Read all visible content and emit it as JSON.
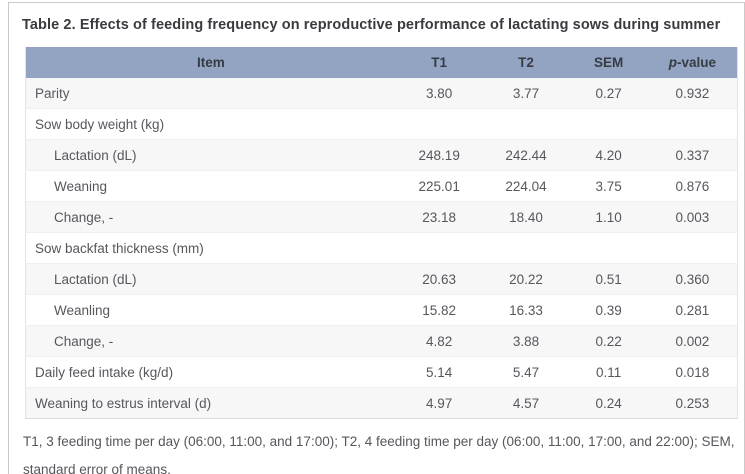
{
  "title": "Table 2. Effects of feeding frequency on reproductive performance of lactating sows during summer",
  "table": {
    "header": {
      "item": "Item",
      "t1": "T1",
      "t2": "T2",
      "sem": "SEM",
      "p_italic": "p",
      "p_rest": "-value"
    },
    "rows": [
      {
        "label": "Parity",
        "indent": false,
        "t1": "3.80",
        "t2": "3.77",
        "sem": "0.27",
        "p": "0.932"
      },
      {
        "label": "Sow body weight (kg)",
        "indent": false,
        "t1": "",
        "t2": "",
        "sem": "",
        "p": ""
      },
      {
        "label": "Lactation (dL)",
        "indent": true,
        "t1": "248.19",
        "t2": "242.44",
        "sem": "4.20",
        "p": "0.337"
      },
      {
        "label": "Weaning",
        "indent": true,
        "t1": "225.01",
        "t2": "224.04",
        "sem": "3.75",
        "p": "0.876"
      },
      {
        "label": "Change, -",
        "indent": true,
        "t1": "23.18",
        "t2": "18.40",
        "sem": "1.10",
        "p": "0.003"
      },
      {
        "label": "Sow backfat thickness (mm)",
        "indent": false,
        "t1": "",
        "t2": "",
        "sem": "",
        "p": ""
      },
      {
        "label": "Lactation (dL)",
        "indent": true,
        "t1": "20.63",
        "t2": "20.22",
        "sem": "0.51",
        "p": "0.360"
      },
      {
        "label": "Weanling",
        "indent": true,
        "t1": "15.82",
        "t2": "16.33",
        "sem": "0.39",
        "p": "0.281"
      },
      {
        "label": "Change, -",
        "indent": true,
        "t1": "4.82",
        "t2": "3.88",
        "sem": "0.22",
        "p": "0.002"
      },
      {
        "label": "Daily feed intake (kg/d)",
        "indent": false,
        "t1": "5.14",
        "t2": "5.47",
        "sem": "0.11",
        "p": "0.018"
      },
      {
        "label": "Weaning to estrus interval (d)",
        "indent": false,
        "t1": "4.97",
        "t2": "4.57",
        "sem": "0.24",
        "p": "0.253"
      }
    ]
  },
  "footnote": "T1, 3 feeding time per day (06:00, 11:00, and 17:00); T2, 4 feeding time per day (06:00, 11:00, 17:00, and 22:00); SEM, standard error of means.",
  "colors": {
    "header_bg": "#92a4c2",
    "header_text": "#363b44",
    "stripe": "#f7f7f8",
    "body_text": "#55575c",
    "panel_border": "#c9cacc"
  }
}
